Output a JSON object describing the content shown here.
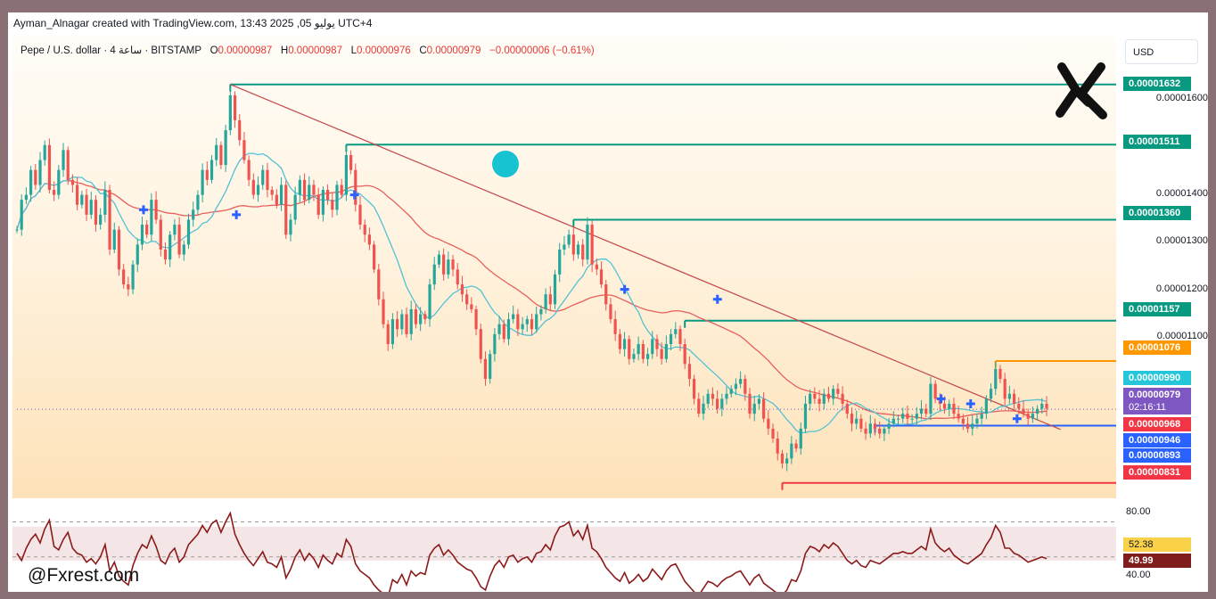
{
  "header": {
    "title": "Ayman_Alnagar created with TradingView.com, 13:43 2025 ,05 يوليو UTC+4"
  },
  "legend": {
    "symbol": "Pepe / U.S. dollar · 4 ساعة · BITSTAMP",
    "open_label": "O",
    "open": "0.00000987",
    "high_label": "H",
    "high": "0.00000987",
    "low_label": "L",
    "low": "0.00000976",
    "close_label": "C",
    "close": "0.00000979",
    "change": "−0.00000006 (−0.61%)"
  },
  "currency_button": "USD",
  "watermark": "@Fxrest.com",
  "colors": {
    "up": "#26a69a",
    "down": "#ef5350",
    "level": "#089981",
    "trend": "#c2474b",
    "sma_fast": "#53c1d6",
    "sma_slow": "#e6605c",
    "rsi": "#8b1a1a",
    "marker": "#2962ff"
  },
  "price_axis": {
    "ticks": [
      "0.00001600",
      "0.00001400",
      "0.00001300",
      "0.00001200",
      "0.00001100"
    ]
  },
  "price_tags": [
    {
      "label": "0.00001632",
      "value": 1.632e-05,
      "color": "#089981"
    },
    {
      "label": "0.00001511",
      "value": 1.511e-05,
      "color": "#089981"
    },
    {
      "label": "0.00001360",
      "value": 1.36e-05,
      "color": "#089981"
    },
    {
      "label": "0.00001157",
      "value": 1.157e-05,
      "color": "#089981"
    },
    {
      "label": "0.00001076",
      "value": 1.076e-05,
      "color": "#ff9800"
    },
    {
      "label": "0.00000990",
      "value": 9.9e-06,
      "color": "#26c6da"
    },
    {
      "label": "0.00000979",
      "value": 9.79e-06,
      "color": "#7e57c2"
    },
    {
      "label": "0.00000968",
      "value": 9.68e-06,
      "color": "#f23645"
    },
    {
      "label": "0.00000946",
      "value": 9.46e-06,
      "color": "#2962ff"
    },
    {
      "label": "0.00000893",
      "value": 8.93e-06,
      "color": "#2962ff"
    },
    {
      "label": "0.00000831",
      "value": 8.31e-06,
      "color": "#f23645"
    }
  ],
  "countdown": "02:16:11",
  "rsi_axis": {
    "upper": "80.00",
    "lower": "40.00",
    "value_a": "52.38",
    "value_b": "49.99"
  },
  "chart_data": {
    "type": "candlestick",
    "title": "Pepe / U.S. dollar · 4H · BITSTAMP",
    "ylim": [
      8e-06,
      1.73e-05
    ],
    "last_price": 9.79e-06,
    "horizontal_levels": [
      {
        "value": 1.632e-05,
        "start_index": 46,
        "color": "#089981"
      },
      {
        "value": 1.511e-05,
        "start_index": 71,
        "color": "#089981"
      },
      {
        "value": 1.36e-05,
        "start_index": 120,
        "color": "#089981"
      },
      {
        "value": 1.157e-05,
        "start_index": 144,
        "color": "#089981"
      },
      {
        "value": 1.076e-05,
        "start_index": 211,
        "color": "#ff9800"
      },
      {
        "value": 9.46e-06,
        "start_index": 185,
        "color": "#2962ff"
      },
      {
        "value": 8.31e-06,
        "start_index": 165,
        "color": "#f23645"
      }
    ],
    "trendline": {
      "from": [
        46,
        1.632e-05
      ],
      "to": [
        222,
        9.5e-06
      ]
    },
    "closes": [
      1.34e-05,
      1.4e-05,
      1.41e-05,
      1.46e-05,
      1.43e-05,
      1.48e-05,
      1.51e-05,
      1.42e-05,
      1.41e-05,
      1.46e-05,
      1.5e-05,
      1.44e-05,
      1.43e-05,
      1.39e-05,
      1.41e-05,
      1.37e-05,
      1.4e-05,
      1.35e-05,
      1.37e-05,
      1.42e-05,
      1.3e-05,
      1.34e-05,
      1.26e-05,
      1.23e-05,
      1.22e-05,
      1.27e-05,
      1.31e-05,
      1.35e-05,
      1.33e-05,
      1.4e-05,
      1.36e-05,
      1.3e-05,
      1.28e-05,
      1.33e-05,
      1.35e-05,
      1.29e-05,
      1.31e-05,
      1.36e-05,
      1.38e-05,
      1.41e-05,
      1.46e-05,
      1.44e-05,
      1.48e-05,
      1.51e-05,
      1.47e-05,
      1.54e-05,
      1.61e-05,
      1.56e-05,
      1.52e-05,
      1.48e-05,
      1.44e-05,
      1.41e-05,
      1.43e-05,
      1.46e-05,
      1.42e-05,
      1.41e-05,
      1.39e-05,
      1.43e-05,
      1.33e-05,
      1.36e-05,
      1.41e-05,
      1.44e-05,
      1.4e-05,
      1.43e-05,
      1.41e-05,
      1.37e-05,
      1.42e-05,
      1.4e-05,
      1.38e-05,
      1.43e-05,
      1.41e-05,
      1.49e-05,
      1.46e-05,
      1.39e-05,
      1.35e-05,
      1.33e-05,
      1.31e-05,
      1.26e-05,
      1.2e-05,
      1.15e-05,
      1.11e-05,
      1.16e-05,
      1.14e-05,
      1.17e-05,
      1.13e-05,
      1.18e-05,
      1.15e-05,
      1.17e-05,
      1.16e-05,
      1.23e-05,
      1.27e-05,
      1.29e-05,
      1.25e-05,
      1.28e-05,
      1.26e-05,
      1.23e-05,
      1.21e-05,
      1.19e-05,
      1.18e-05,
      1.14e-05,
      1.08e-05,
      1.04e-05,
      1.09e-05,
      1.13e-05,
      1.15e-05,
      1.12e-05,
      1.16e-05,
      1.17e-05,
      1.14e-05,
      1.15e-05,
      1.16e-05,
      1.14e-05,
      1.17e-05,
      1.18e-05,
      1.21e-05,
      1.19e-05,
      1.25e-05,
      1.3e-05,
      1.31e-05,
      1.33e-05,
      1.29e-05,
      1.31e-05,
      1.28e-05,
      1.35e-05,
      1.27e-05,
      1.26e-05,
      1.23e-05,
      1.19e-05,
      1.16e-05,
      1.13e-05,
      1.1e-05,
      1.12e-05,
      1.08e-05,
      1.09e-05,
      1.11e-05,
      1.08e-05,
      1.09e-05,
      1.12e-05,
      1.1e-05,
      1.08e-05,
      1.11e-05,
      1.13e-05,
      1.14e-05,
      1.11e-05,
      1.07e-05,
      1.04e-05,
      1e-05,
      9.7e-06,
      9.9e-06,
      1.01e-05,
      1e-05,
      9.8e-06,
      1e-05,
      1.01e-05,
      1.02e-05,
      1.03e-05,
      1.04e-05,
      1.01e-05,
      9.7e-06,
      9.9e-06,
      1e-05,
      9.6e-06,
      9.4e-06,
      9.2e-06,
      8.9e-06,
      8.7e-06,
      8.8e-06,
      9.1e-06,
      9e-06,
      9.4e-06,
      9.9e-06,
      1.01e-05,
      1e-05,
      9.9e-06,
      1.01e-05,
      1e-05,
      1.02e-05,
      1.01e-05,
      9.9e-06,
      9.7e-06,
      9.5e-06,
      9.6e-06,
      9.4e-06,
      9.3e-06,
      9.5e-06,
      9.4e-06,
      9.3e-06,
      9.4e-06,
      9.5e-06,
      9.6e-06,
      9.6e-06,
      9.7e-06,
      9.6e-06,
      9.6e-06,
      9.7e-06,
      9.8e-06,
      9.7e-06,
      1.03e-05,
      1e-05,
      9.9e-06,
      9.8e-06,
      9.9e-06,
      9.7e-06,
      9.6e-06,
      9.5e-06,
      9.4e-06,
      9.5e-06,
      9.6e-06,
      9.7e-06,
      1e-05,
      1.02e-05,
      1.06e-05,
      1.04e-05,
      1e-05,
      1.01e-05,
      9.9e-06,
      9.8e-06,
      9.7e-06,
      9.6e-06,
      9.7e-06,
      9.8e-06,
      9.9e-06,
      9.8e-06
    ],
    "rsi": {
      "levels": [
        70,
        50
      ],
      "values": [
        52,
        48,
        55,
        60,
        63,
        58,
        66,
        71,
        56,
        54,
        60,
        64,
        55,
        52,
        51,
        47,
        49,
        46,
        50,
        57,
        42,
        47,
        39,
        36,
        34,
        45,
        52,
        57,
        55,
        62,
        56,
        48,
        46,
        52,
        55,
        47,
        50,
        57,
        60,
        63,
        68,
        64,
        69,
        71,
        64,
        70,
        75,
        63,
        57,
        52,
        48,
        45,
        49,
        53,
        47,
        46,
        44,
        50,
        38,
        43,
        50,
        54,
        48,
        52,
        49,
        44,
        51,
        48,
        46,
        52,
        50,
        60,
        56,
        46,
        42,
        40,
        38,
        34,
        31,
        29,
        27,
        37,
        35,
        40,
        34,
        42,
        39,
        41,
        40,
        51,
        55,
        57,
        51,
        54,
        51,
        47,
        45,
        43,
        42,
        38,
        33,
        31,
        39,
        45,
        48,
        44,
        50,
        51,
        47,
        49,
        50,
        47,
        52,
        53,
        57,
        54,
        62,
        67,
        68,
        70,
        62,
        65,
        60,
        68,
        55,
        53,
        49,
        44,
        41,
        38,
        36,
        41,
        35,
        37,
        40,
        36,
        38,
        43,
        40,
        37,
        42,
        45,
        46,
        41,
        36,
        33,
        30,
        28,
        32,
        36,
        35,
        33,
        36,
        38,
        39,
        41,
        42,
        38,
        34,
        38,
        40,
        35,
        33,
        31,
        29,
        28,
        31,
        37,
        36,
        42,
        52,
        56,
        55,
        53,
        57,
        55,
        58,
        56,
        52,
        48,
        46,
        48,
        45,
        44,
        48,
        47,
        46,
        48,
        50,
        52,
        52,
        53,
        52,
        52,
        54,
        56,
        54,
        66,
        58,
        55,
        53,
        55,
        51,
        49,
        47,
        46,
        48,
        50,
        52,
        57,
        61,
        68,
        64,
        55,
        55,
        52,
        51,
        49,
        47,
        48,
        49,
        50,
        49
      ]
    }
  }
}
